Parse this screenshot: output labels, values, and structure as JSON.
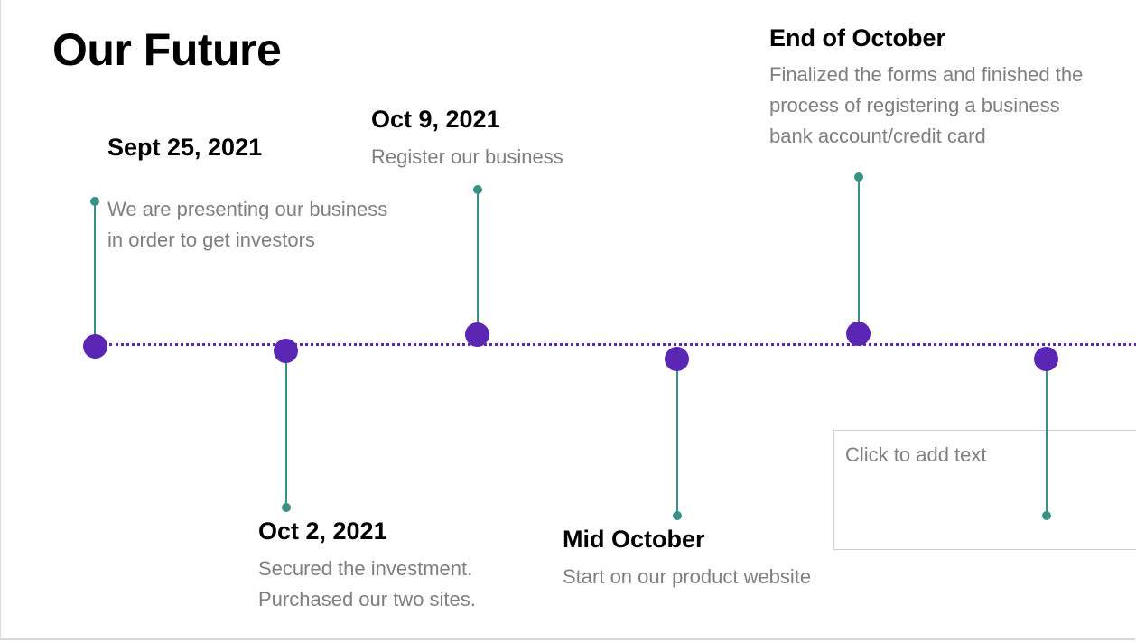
{
  "slide": {
    "title": "Our Future"
  },
  "accent_colors": {
    "node": "#5b26b3",
    "stem": "#3c8f84",
    "axis": "#5b2bb5"
  },
  "events": [
    {
      "date": "Sept 25, 2021",
      "desc": [
        "We are presenting our business",
        "in order to get investors"
      ]
    },
    {
      "date": "Oct 2, 2021",
      "desc": [
        "Secured the investment.",
        "Purchased our two sites."
      ]
    },
    {
      "date": "Oct 9, 2021",
      "desc": [
        "Register our business"
      ]
    },
    {
      "date": "Mid October",
      "desc": [
        "Start on our product website"
      ]
    },
    {
      "date": "End of October",
      "desc": [
        "Finalized the forms and finished the",
        "process of registering a business",
        "bank account/credit card"
      ]
    }
  ],
  "placeholder": {
    "text": "Click to add text"
  }
}
